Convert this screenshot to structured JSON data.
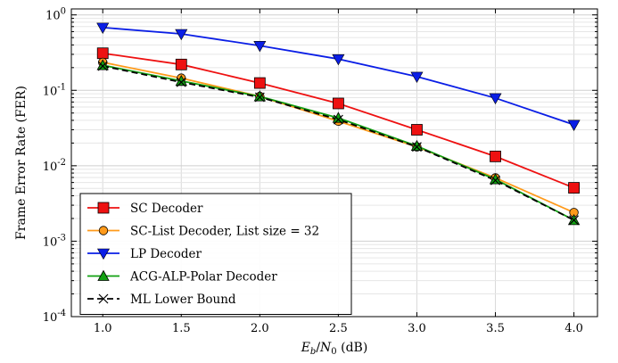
{
  "chart_data": {
    "type": "line",
    "title": "",
    "xlabel": "E_b/N_0 (dB)",
    "xlabel_parts": {
      "E": "E",
      "b": "b",
      "slash": "/",
      "N": "N",
      "zero": "0",
      "unit": " (dB)"
    },
    "ylabel": "Frame Error Rate (FER)",
    "x": [
      1.0,
      1.5,
      2.0,
      2.5,
      3.0,
      3.5,
      4.0
    ],
    "x_tick_labels": [
      "1.0",
      "1.5",
      "2.0",
      "2.5",
      "3.0",
      "3.5",
      "4.0"
    ],
    "y_tick_exponents": [
      "0",
      "-1",
      "-2",
      "-3",
      "-4"
    ],
    "y_tick_base": "10",
    "xlim": [
      0.8,
      4.15
    ],
    "ylim": [
      0.0001,
      1.2
    ],
    "yscale": "log",
    "grid": true,
    "legend_position": "lower-left",
    "series": [
      {
        "name": "SC Decoder",
        "color": "#ee1111",
        "marker": "square",
        "dash": false,
        "values": [
          0.31,
          0.22,
          0.125,
          0.067,
          0.03,
          0.0133,
          0.0051
        ]
      },
      {
        "name": "SC-List Decoder, List size = 32",
        "color": "#ff9a1a",
        "marker": "circle",
        "dash": false,
        "values": [
          0.235,
          0.145,
          0.083,
          0.039,
          0.0178,
          0.0069,
          0.0024
        ]
      },
      {
        "name": "LP Decoder",
        "color": "#0a1ee6",
        "marker": "triangle-down",
        "dash": false,
        "values": [
          0.68,
          0.56,
          0.39,
          0.26,
          0.152,
          0.079,
          0.035
        ]
      },
      {
        "name": "ACG-ALP-Polar Decoder",
        "color": "#11a011",
        "marker": "triangle-up",
        "dash": false,
        "values": [
          0.215,
          0.133,
          0.083,
          0.043,
          0.0183,
          0.0066,
          0.0019
        ]
      },
      {
        "name": "ML Lower Bound",
        "color": "#000000",
        "marker": "x",
        "dash": true,
        "values": [
          0.21,
          0.128,
          0.081,
          0.041,
          0.0178,
          0.0064,
          0.0019
        ]
      }
    ]
  }
}
